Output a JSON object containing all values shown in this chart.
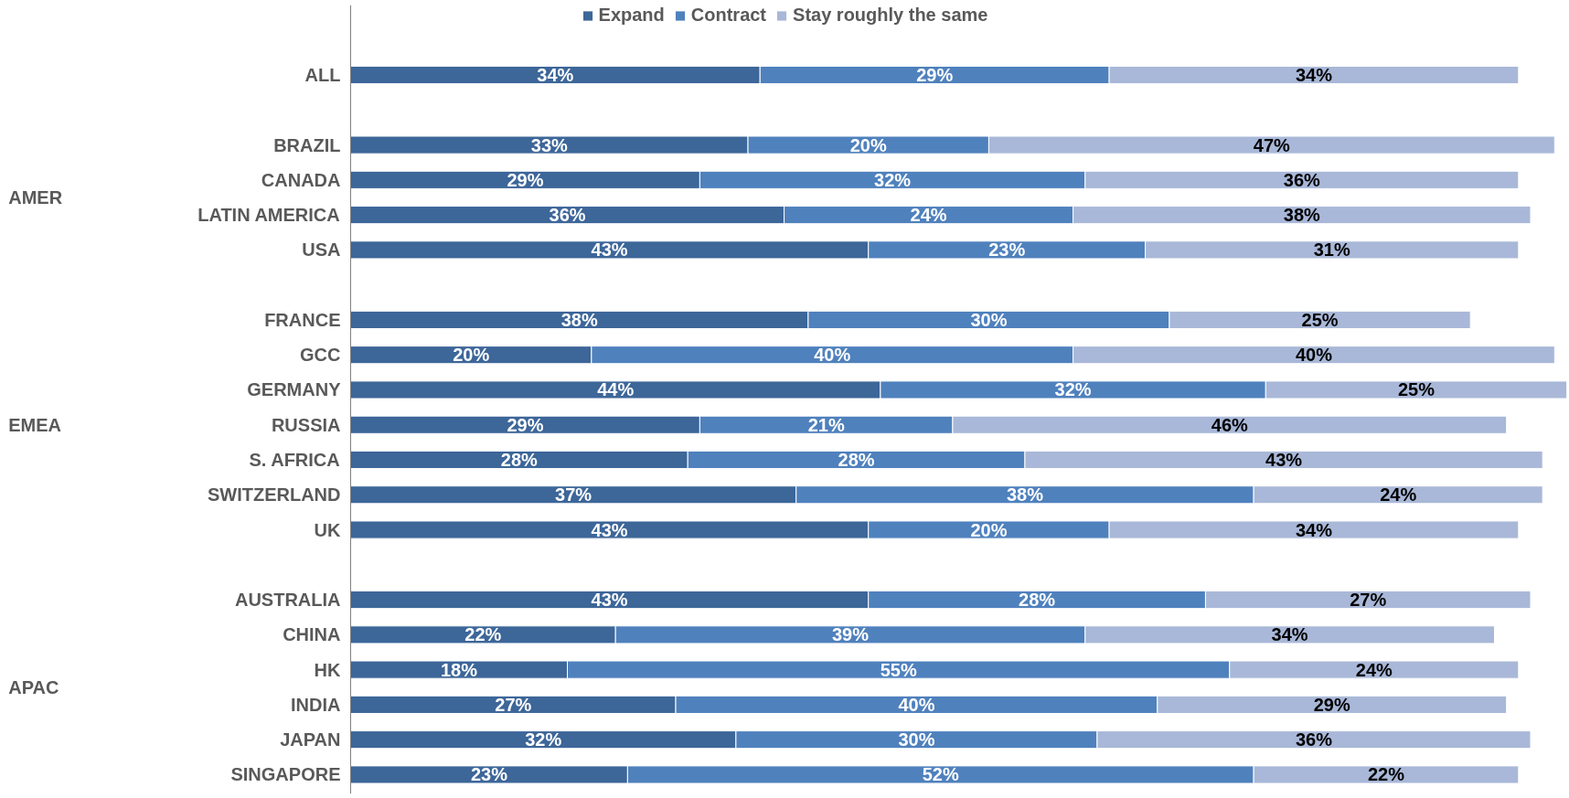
{
  "chart_data": {
    "type": "bar",
    "orientation": "horizontal",
    "stacked": true,
    "categories": [
      "ALL",
      null,
      "BRAZIL",
      "CANADA",
      "LATIN AMERICA",
      "USA",
      null,
      "FRANCE",
      "GCC",
      "GERMANY",
      "RUSSIA",
      "S. AFRICA",
      "SWITZERLAND",
      "UK",
      null,
      "AUSTRALIA",
      "CHINA",
      "HK",
      "INDIA",
      "JAPAN",
      "SINGAPORE"
    ],
    "series": [
      {
        "name": "Expand",
        "color": "#3d6699",
        "values": [
          34,
          null,
          33,
          29,
          36,
          43,
          null,
          38,
          20,
          44,
          29,
          28,
          37,
          43,
          null,
          43,
          22,
          18,
          27,
          32,
          23
        ],
        "value_labels": [
          "34%",
          null,
          "33%",
          "29%",
          "36%",
          "43%",
          null,
          "38%",
          "20%",
          "44%",
          "29%",
          "28%",
          "37%",
          "43%",
          null,
          "43%",
          "22%",
          "18%",
          "27%",
          "32%",
          "23%"
        ]
      },
      {
        "name": "Contract",
        "color": "#4f81bd",
        "values": [
          29,
          null,
          20,
          32,
          24,
          23,
          null,
          30,
          40,
          32,
          21,
          28,
          38,
          20,
          null,
          28,
          39,
          55,
          40,
          30,
          52
        ],
        "value_labels": [
          "29%",
          null,
          "20%",
          "32%",
          "24%",
          "23%",
          null,
          "30%",
          "40%",
          "32%",
          "21%",
          "28%",
          "38%",
          "20%",
          null,
          "28%",
          "39%",
          "55%",
          "40%",
          "30%",
          "52%"
        ]
      },
      {
        "name": "Stay roughly the same",
        "color": "#a9b8d8",
        "values": [
          34,
          null,
          47,
          36,
          38,
          31,
          null,
          25,
          40,
          25,
          46,
          43,
          24,
          34,
          null,
          27,
          34,
          24,
          29,
          36,
          22
        ],
        "value_labels": [
          "34%",
          null,
          "47%",
          "36%",
          "38%",
          "31%",
          null,
          "25%",
          "40%",
          "25%",
          "46%",
          "43%",
          "24%",
          "34%",
          null,
          "27%",
          "34%",
          "24%",
          "29%",
          "36%",
          "22%"
        ]
      }
    ],
    "annotations": [
      "AMER",
      "EMEA",
      "APAC"
    ],
    "legend": "top",
    "grid": false,
    "tick_labels": "y"
  }
}
